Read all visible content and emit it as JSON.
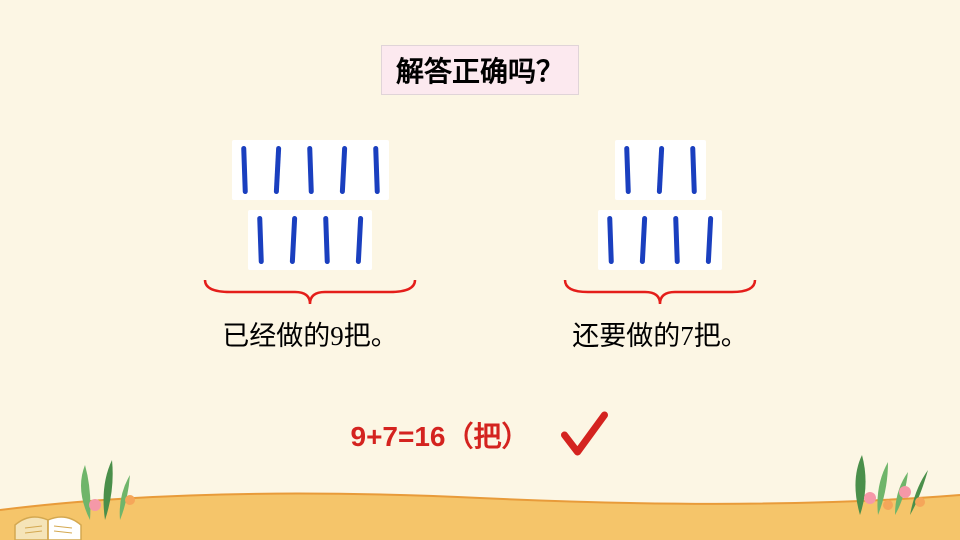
{
  "question": {
    "text": "解答正确吗？",
    "bg_color": "#fce9ef",
    "border_color": "#e0d4d8",
    "font_size": 28
  },
  "groups": {
    "left": {
      "rows": [
        5,
        4
      ],
      "label": "已经做的9把。",
      "stick_color": "#1a3fbf",
      "brace_color": "#e41e1a"
    },
    "right": {
      "rows": [
        3,
        4
      ],
      "label": "还要做的7把。",
      "stick_color": "#1a3fbf",
      "brace_color": "#e41e1a"
    }
  },
  "equation": {
    "expr": "9+7=16（把）",
    "color": "#d4231f",
    "check_color": "#d4231f"
  },
  "label_style": {
    "font_size": 27,
    "color": "#000000"
  },
  "background_color": "#fcf6e4",
  "footer": {
    "ground_color": "#f5c56a",
    "ground_stroke": "#e89b3a",
    "plant_green": "#6fb56a",
    "plant_dark": "#4a8f4a",
    "flower_pink": "#f598a8",
    "flower_orange": "#f5a65a",
    "book_left": "#f5e4b8",
    "book_right": "#fff",
    "book_edge": "#d4a850"
  }
}
